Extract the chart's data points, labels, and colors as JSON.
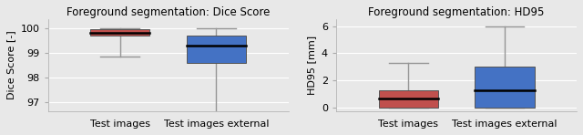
{
  "left": {
    "title": "Foreground segmentation: Dice Score",
    "ylabel": "Dice Score [-]",
    "xlabels": [
      "Test images",
      "Test images external"
    ],
    "ylim": [
      96.65,
      100.35
    ],
    "yticks": [
      97,
      98,
      99,
      100
    ],
    "boxes": [
      {
        "whisker_low": 98.85,
        "q1": 99.68,
        "median": 99.82,
        "q3": 99.94,
        "whisker_high": 100.0,
        "color": "#c0504d"
      },
      {
        "whisker_low": 96.55,
        "q1": 98.58,
        "median": 99.28,
        "q3": 99.68,
        "whisker_high": 100.0,
        "color": "#4472c4"
      }
    ]
  },
  "right": {
    "title": "Foreground segmentation: HD95",
    "ylabel": "HD95 [mm]",
    "xlabels": [
      "Test images",
      "Test images external"
    ],
    "ylim": [
      -0.25,
      6.5
    ],
    "yticks": [
      0,
      2,
      4,
      6
    ],
    "boxes": [
      {
        "whisker_low": 0.0,
        "q1": 0.0,
        "median": 0.72,
        "q3": 1.32,
        "whisker_high": 3.3,
        "color": "#c0504d"
      },
      {
        "whisker_low": 0.05,
        "q1": 0.05,
        "median": 1.28,
        "q3": 3.0,
        "whisker_high": 6.0,
        "color": "#4472c4"
      }
    ]
  },
  "bg_color": "#e8e8e8",
  "fig_bg_color": "#e8e8e8",
  "median_color": "#000000",
  "whisker_color": "#969696",
  "box_width": 0.62,
  "title_fontsize": 8.5,
  "label_fontsize": 8,
  "tick_fontsize": 8
}
